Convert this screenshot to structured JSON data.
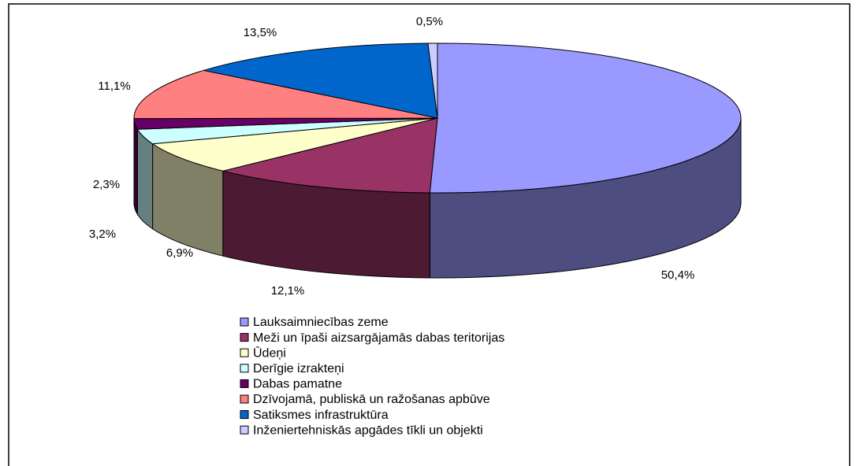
{
  "chart_data": {
    "type": "pie3d",
    "series": [
      {
        "name": "Lauksaimniecības zeme",
        "color": "#9999ff",
        "values": [
          50.4
        ],
        "value_labels": [
          "50,4%"
        ]
      },
      {
        "name": "Meži un īpaši aizsargājamās dabas teritorijas",
        "color": "#993366",
        "values": [
          12.1
        ],
        "value_labels": [
          "12,1%"
        ]
      },
      {
        "name": "Ūdeņi",
        "color": "#ffffcc",
        "values": [
          6.9
        ],
        "value_labels": [
          "6,9%"
        ]
      },
      {
        "name": "Derīgie izrakteņi",
        "color": "#ccffff",
        "values": [
          3.2
        ],
        "value_labels": [
          "3,2%"
        ]
      },
      {
        "name": "Dabas pamatne",
        "color": "#660066",
        "values": [
          2.3
        ],
        "value_labels": [
          "2,3%"
        ]
      },
      {
        "name": "Dzīvojamā, publiskā un ražošanas apbūve",
        "color": "#ff8080",
        "values": [
          11.1
        ],
        "value_labels": [
          "11,1%"
        ]
      },
      {
        "name": "Satiksmes infrastruktūra",
        "color": "#0066cc",
        "values": [
          13.5
        ],
        "value_labels": [
          "13,5%"
        ]
      },
      {
        "name": "Inženiertehniskās apgādes tīkli un objekti",
        "color": "#ccccff",
        "values": [
          0.5
        ],
        "value_labels": [
          "0,5%"
        ]
      }
    ],
    "legend": "bottom"
  }
}
